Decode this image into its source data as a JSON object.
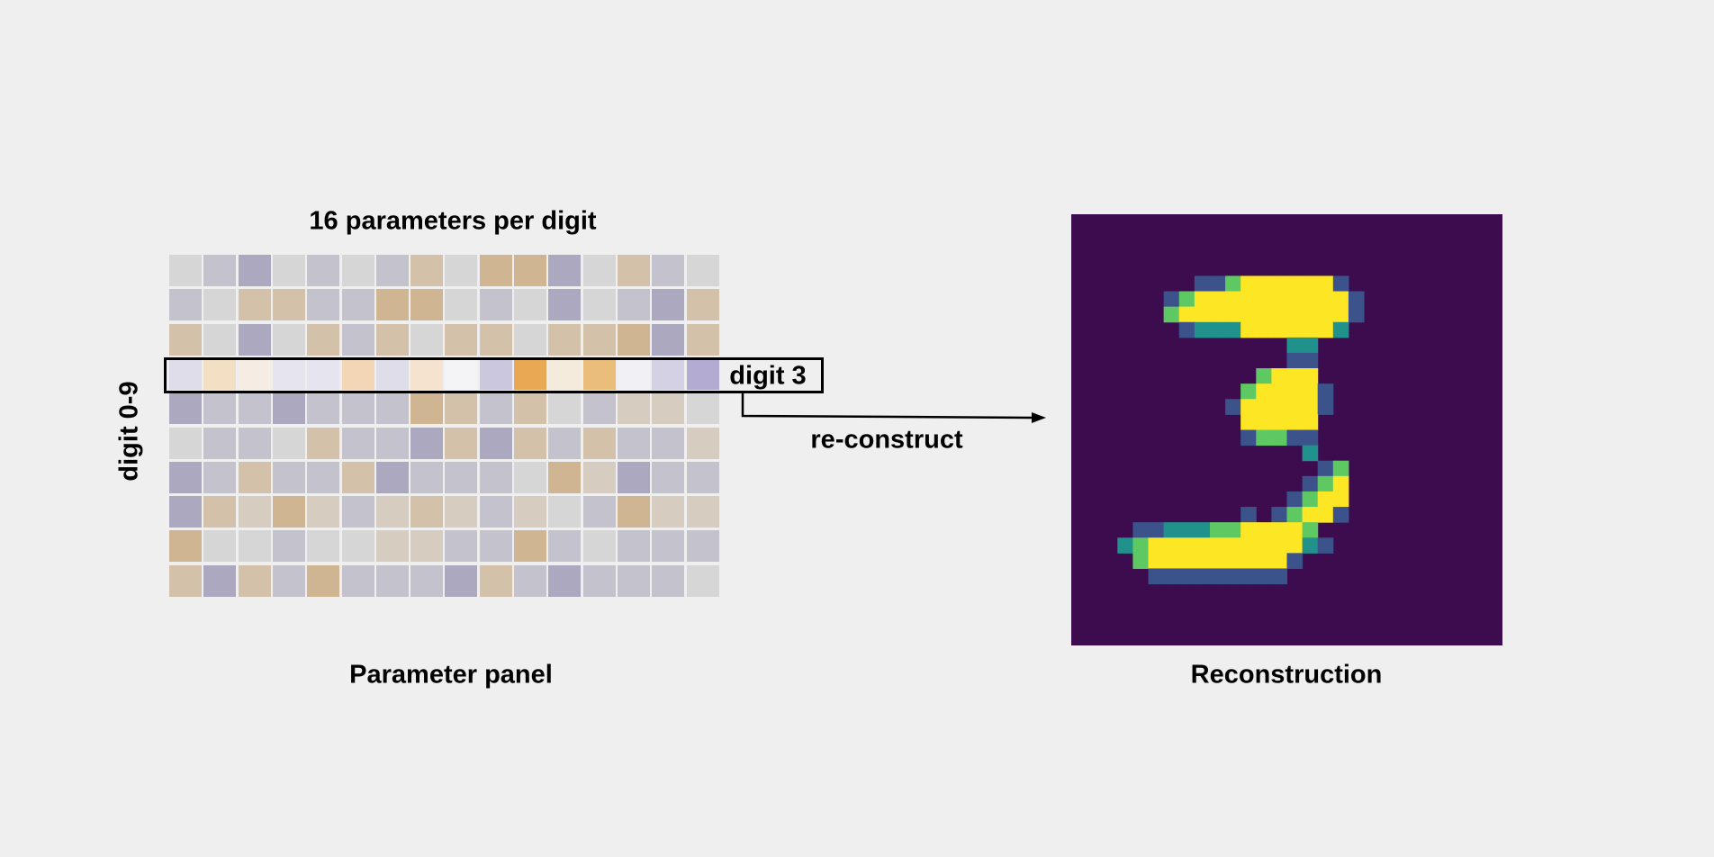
{
  "diagram": {
    "title": "16 parameters per digit",
    "y_axis_label": "digit 0-9",
    "panel_caption": "Parameter panel",
    "highlight_label": "digit 3",
    "arrow_label": "re-construct",
    "reconstruction_caption": "Reconstruction"
  },
  "palette": {
    "background": "#efefef",
    "reconstruction_background": "#3d0c4f",
    "viridis": [
      "#440154",
      "#3b528b",
      "#21918c",
      "#5ec962",
      "#fde725"
    ]
  },
  "parameter_panel": {
    "rows": 10,
    "cols": 16,
    "highlighted_row": 3,
    "cell_colors": [
      [
        "#d6d6d6",
        "#c4c2cd",
        "#aca8bf",
        "#d6d6d6",
        "#c4c2cd",
        "#d6d6d6",
        "#c4c2cd",
        "#d3c2a9",
        "#d6d6d6",
        "#d0b592",
        "#d0b592",
        "#aca8bf",
        "#d6d6d6",
        "#d3c2a9",
        "#c4c2cd",
        "#d6d6d6"
      ],
      [
        "#c4c2cd",
        "#d6d6d6",
        "#d3c2a9",
        "#d3c2a9",
        "#c4c2cd",
        "#c4c2cd",
        "#d0b592",
        "#d0b592",
        "#d6d6d6",
        "#c4c2cd",
        "#d6d6d6",
        "#aca8bf",
        "#d6d6d6",
        "#c4c2cd",
        "#aca8bf",
        "#d3c2a9"
      ],
      [
        "#d3c2a9",
        "#d6d6d6",
        "#aca8bf",
        "#d6d6d6",
        "#d3c2a9",
        "#c4c2cd",
        "#d3c2a9",
        "#d6d6d6",
        "#d3c2a9",
        "#d3c2a9",
        "#d6d6d6",
        "#d3c2a9",
        "#d3c2a9",
        "#d0b592",
        "#aca8bf",
        "#d3c2a9"
      ],
      [
        "#dedde9",
        "#f3dfc3",
        "#f5ede3",
        "#e6e4ef",
        "#e6e4ef",
        "#f3d6b5",
        "#dedde9",
        "#f5e3cf",
        "#f4f3f6",
        "#cac7df",
        "#e8a854",
        "#f5ebdc",
        "#ebbd7b",
        "#f1f0f4",
        "#d4d1e4",
        "#b3abd1"
      ],
      [
        "#aca8bf",
        "#c4c2cd",
        "#c4c2cd",
        "#aca8bf",
        "#c4c2cd",
        "#c4c2cd",
        "#c4c2cd",
        "#d0b592",
        "#d3c2a9",
        "#c4c2cd",
        "#d3c2a9",
        "#d6d6d6",
        "#c4c2cd",
        "#d6ccbf",
        "#d6ccbf",
        "#d6d6d6"
      ],
      [
        "#d6d6d6",
        "#c4c2cd",
        "#c4c2cd",
        "#d6d6d6",
        "#d3c2a9",
        "#c4c2cd",
        "#c4c2cd",
        "#aca8bf",
        "#d3c2a9",
        "#aca8bf",
        "#d3c2a9",
        "#c4c2cd",
        "#d3c2a9",
        "#c4c2cd",
        "#c4c2cd",
        "#d6ccbf"
      ],
      [
        "#aca8bf",
        "#c4c2cd",
        "#d3c2a9",
        "#c4c2cd",
        "#c4c2cd",
        "#d3c2a9",
        "#aca8bf",
        "#c4c2cd",
        "#c4c2cd",
        "#c4c2cd",
        "#d6d6d6",
        "#d0b592",
        "#d6ccbf",
        "#aca8bf",
        "#c4c2cd",
        "#c4c2cd"
      ],
      [
        "#aca8bf",
        "#d3c2a9",
        "#d6ccbf",
        "#d0b592",
        "#d6ccbf",
        "#c4c2cd",
        "#d6ccbf",
        "#d3c2a9",
        "#d6ccbf",
        "#c4c2cd",
        "#d6ccbf",
        "#d6d6d6",
        "#c4c2cd",
        "#d0b592",
        "#d6ccbf",
        "#d6ccbf"
      ],
      [
        "#d0b592",
        "#d6d6d6",
        "#d6d6d6",
        "#c4c2cd",
        "#d6d6d6",
        "#d6d6d6",
        "#d6ccbf",
        "#d6ccbf",
        "#c4c2cd",
        "#c4c2cd",
        "#d0b592",
        "#c4c2cd",
        "#d6d6d6",
        "#c4c2cd",
        "#c4c2cd",
        "#c4c2cd"
      ],
      [
        "#d3c2a9",
        "#aca8bf",
        "#d3c2a9",
        "#c4c2cd",
        "#d0b592",
        "#c4c2cd",
        "#c4c2cd",
        "#c4c2cd",
        "#aca8bf",
        "#d3c2a9",
        "#c4c2cd",
        "#aca8bf",
        "#c4c2cd",
        "#c4c2cd",
        "#c4c2cd",
        "#d6d6d6"
      ]
    ]
  },
  "reconstruction": {
    "grid": 28,
    "pixel_rows": [
      "............................",
      "............................",
      "............................",
      "............................",
      "........1134444441..........",
      "......1344444444441.........",
      "......3444444444441.........",
      ".......12224444442..........",
      "..............22............",
      "..............11............",
      "............3444............",
      "...........344441...........",
      "..........1444441...........",
      "...........44444............",
      "...........13311............",
      "...............2............",
      "................13...........",
      "...............134...........",
      "..............1344...........",
      "...........1.13441...........",
      "....112223344443.............",
      "...23444444444421............",
      "....34444444441..............",
      ".....111111111...............",
      "............................",
      "............................",
      "............................",
      "............................"
    ]
  }
}
